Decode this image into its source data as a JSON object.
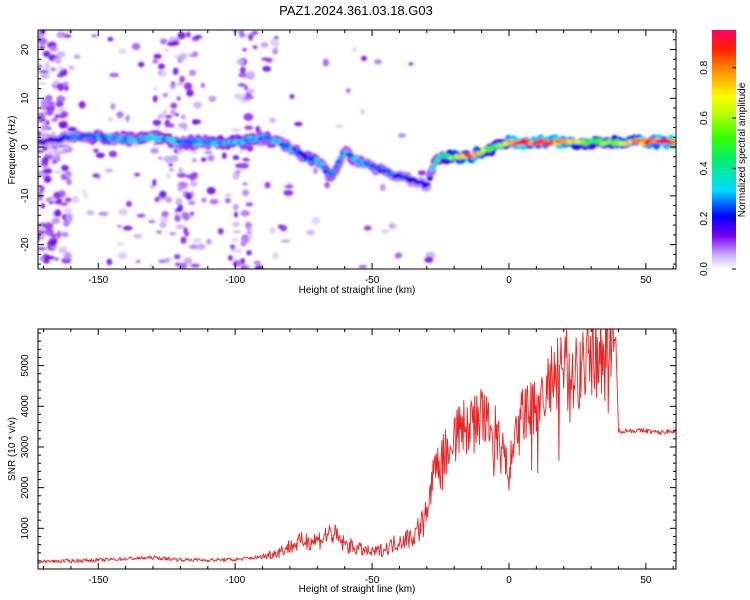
{
  "figure": {
    "title": "PAZ1.2024.361.03.18.G03"
  },
  "chart_data": [
    {
      "type": "heatmap",
      "title": "PAZ1.2024.361.03.18.G03",
      "xlabel": "Height of straight line (km)",
      "ylabel": "Frequency (Hz)",
      "xlim": [
        -172,
        61
      ],
      "ylim": [
        -25,
        24
      ],
      "xticks": [
        -150,
        -100,
        -50,
        0,
        50
      ],
      "yticks": [
        -20,
        -10,
        0,
        10,
        20
      ],
      "grid": false,
      "colorbar": {
        "label": "Normalized spectral amplitude",
        "range": [
          0,
          0.95
        ],
        "ticks": [
          0.0,
          0.2,
          0.4,
          0.6,
          0.8
        ]
      },
      "ridge": {
        "x": [
          -170,
          -160,
          -150,
          -140,
          -130,
          -120,
          -110,
          -100,
          -90,
          -80,
          -75,
          -70,
          -65,
          -60,
          -55,
          -50,
          -45,
          -40,
          -35,
          -30,
          -27,
          -25,
          -20,
          -15,
          -10,
          -5,
          0,
          5,
          10,
          20,
          30,
          40,
          50,
          60
        ],
        "frequency": [
          1,
          2,
          2,
          1.5,
          2,
          1,
          1,
          1,
          2,
          0,
          -2,
          -3,
          -6,
          -1,
          -3,
          -4,
          -5,
          -6,
          -7,
          -8,
          -3,
          -2,
          -2,
          -2,
          -1,
          0,
          1,
          1,
          1,
          1,
          1,
          1,
          1,
          1
        ],
        "amplitude": [
          0.15,
          0.25,
          0.3,
          0.3,
          0.35,
          0.3,
          0.3,
          0.35,
          0.3,
          0.3,
          0.25,
          0.3,
          0.25,
          0.3,
          0.3,
          0.25,
          0.25,
          0.25,
          0.2,
          0.2,
          0.35,
          0.4,
          0.6,
          0.85,
          0.7,
          0.5,
          0.8,
          0.9,
          0.85,
          0.9,
          0.5,
          0.65,
          0.9,
          0.95
        ]
      }
    },
    {
      "type": "line",
      "xlabel": "Height of straight line (km)",
      "ylabel": "SNR (10 * v/v)",
      "xlim": [
        -172,
        61
      ],
      "ylim": [
        0,
        5900
      ],
      "xticks": [
        -150,
        -100,
        -50,
        0,
        50
      ],
      "yticks": [
        1000,
        2000,
        3000,
        4000,
        5000
      ],
      "grid": false,
      "series": [
        {
          "color": "#ee2222",
          "x": [
            -172,
            -160,
            -150,
            -140,
            -130,
            -120,
            -110,
            -100,
            -90,
            -85,
            -80,
            -75,
            -70,
            -65,
            -60,
            -55,
            -50,
            -45,
            -40,
            -35,
            -30,
            -27,
            -25,
            -22,
            -20,
            -15,
            -10,
            -5,
            0,
            5,
            10,
            15,
            20,
            25,
            30,
            35,
            38,
            39,
            40,
            45,
            50,
            55,
            60
          ],
          "y": [
            180,
            200,
            220,
            250,
            280,
            230,
            220,
            230,
            300,
            400,
            550,
            700,
            700,
            900,
            600,
            500,
            400,
            500,
            700,
            800,
            1300,
            2500,
            2800,
            3000,
            3300,
            3500,
            3700,
            3300,
            2400,
            3800,
            4000,
            4500,
            4800,
            5000,
            5300,
            5500,
            5600,
            5700,
            3400,
            3400,
            3400,
            3350,
            3400
          ]
        }
      ]
    }
  ]
}
